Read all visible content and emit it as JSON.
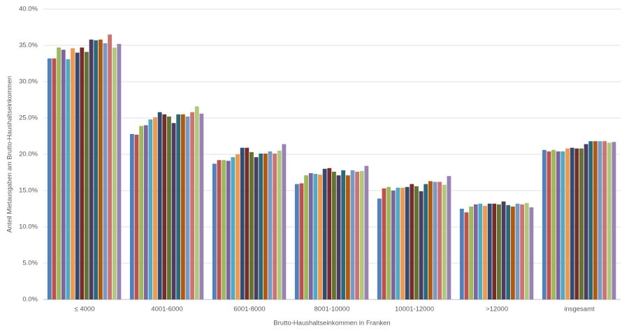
{
  "chart_data": {
    "type": "bar",
    "x_label": "Brutto-Haushaltseinkommen in Franken",
    "y_label": "Anteil Mietausgaben am Brutto-Haushaltseinkommen",
    "categories": [
      "≤ 4000",
      "4001-6000",
      "6001-8000",
      "8001-10000",
      "10001-12000",
      ">12000",
      "insgesamt"
    ],
    "series": [
      {
        "color": "#4f81bd",
        "values": [
          33.2,
          22.8,
          18.7,
          15.9,
          13.9,
          12.5,
          20.6
        ]
      },
      {
        "color": "#c0504d",
        "values": [
          33.2,
          22.7,
          19.2,
          16.0,
          15.3,
          12.0,
          20.4
        ]
      },
      {
        "color": "#9bbb59",
        "values": [
          34.7,
          23.9,
          19.2,
          17.1,
          15.5,
          12.8,
          20.6
        ]
      },
      {
        "color": "#8064a2",
        "values": [
          34.4,
          24.0,
          19.1,
          17.4,
          15.0,
          13.1,
          20.4
        ]
      },
      {
        "color": "#4bacc6",
        "values": [
          33.1,
          24.8,
          19.6,
          17.3,
          15.4,
          13.2,
          20.4
        ]
      },
      {
        "color": "#f79646",
        "values": [
          34.6,
          25.1,
          20.0,
          17.2,
          15.4,
          12.9,
          20.8
        ]
      },
      {
        "color": "#2c4d75",
        "values": [
          34.0,
          25.8,
          20.9,
          18.0,
          15.5,
          13.2,
          20.9
        ]
      },
      {
        "color": "#772c2a",
        "values": [
          34.7,
          25.5,
          20.9,
          18.1,
          15.9,
          13.2,
          20.8
        ]
      },
      {
        "color": "#5f7530",
        "values": [
          34.1,
          25.2,
          20.3,
          17.6,
          15.6,
          13.1,
          20.8
        ]
      },
      {
        "color": "#4d3b62",
        "values": [
          35.8,
          24.3,
          19.6,
          17.1,
          14.9,
          13.5,
          21.4
        ]
      },
      {
        "color": "#276a7c",
        "values": [
          35.7,
          25.5,
          20.1,
          17.8,
          15.9,
          13.0,
          21.8
        ]
      },
      {
        "color": "#b65708",
        "values": [
          35.8,
          25.5,
          20.1,
          17.1,
          16.3,
          12.8,
          21.8
        ]
      },
      {
        "color": "#729aca",
        "values": [
          35.3,
          25.2,
          20.4,
          17.8,
          16.2,
          13.2,
          21.8
        ]
      },
      {
        "color": "#cd7371",
        "values": [
          36.5,
          25.8,
          20.1,
          17.6,
          16.2,
          13.1,
          21.8
        ]
      },
      {
        "color": "#afc97a",
        "values": [
          34.7,
          26.6,
          20.5,
          17.7,
          15.8,
          13.3,
          21.6
        ]
      },
      {
        "color": "#9983b5",
        "values": [
          35.2,
          25.6,
          21.4,
          18.4,
          17.0,
          12.7,
          21.7
        ]
      }
    ],
    "ylim": [
      0,
      40
    ],
    "yticks": [
      {
        "value": 0,
        "label": "0.0%"
      },
      {
        "value": 5,
        "label": "5.0%"
      },
      {
        "value": 10,
        "label": "10.0%"
      },
      {
        "value": 15,
        "label": "15.0%"
      },
      {
        "value": 20,
        "label": "20.0%"
      },
      {
        "value": 25,
        "label": "25.0%"
      },
      {
        "value": 30,
        "label": "30.0%"
      },
      {
        "value": 35,
        "label": "35.0%"
      },
      {
        "value": 40,
        "label": "40.0%"
      }
    ],
    "grid": true
  }
}
